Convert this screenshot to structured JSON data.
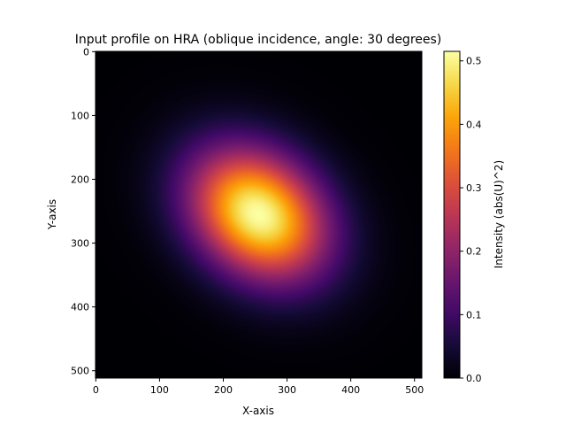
{
  "chart_data": {
    "type": "heatmap",
    "title": "Input profile on HRA (oblique incidence, angle: 30 degrees)",
    "xlabel": "X-axis",
    "ylabel": "Y-axis",
    "x_range": [
      0,
      511
    ],
    "y_range": [
      0,
      511
    ],
    "y_inverted": true,
    "x_ticks": [
      0,
      100,
      200,
      300,
      400,
      500
    ],
    "y_ticks": [
      0,
      100,
      200,
      300,
      400,
      500
    ],
    "colormap": "inferno",
    "colorbar": {
      "label": "Intensity (abs(U)^2)",
      "range": [
        0.0,
        0.515
      ],
      "ticks": [
        0.0,
        0.1,
        0.2,
        0.3,
        0.4,
        0.5
      ],
      "tick_labels": [
        "0.0",
        "0.1",
        "0.2",
        "0.3",
        "0.4",
        "0.5"
      ]
    },
    "profile": {
      "shape": "tilted elliptical gaussian",
      "peak_intensity": 0.515,
      "center_x": 255,
      "center_y": 255,
      "sigma_major": 82,
      "sigma_minor": 63,
      "major_axis_angle_deg": 40
    },
    "grid": false
  }
}
